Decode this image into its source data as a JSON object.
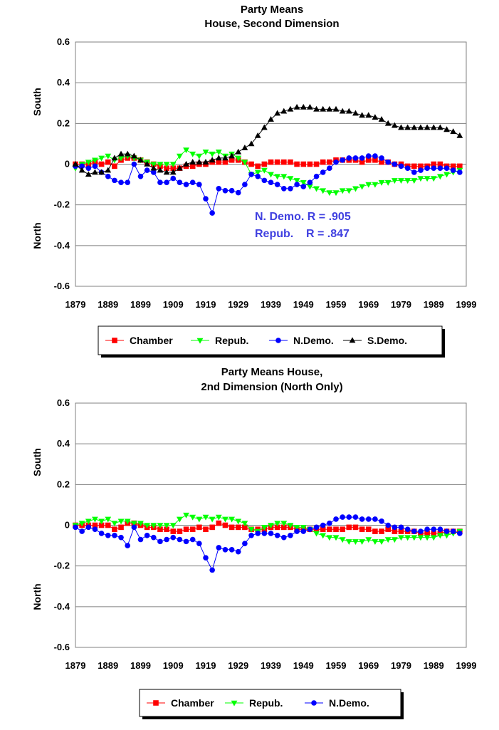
{
  "chart_data": [
    {
      "type": "line",
      "title": "Party Means",
      "subtitle": "House, Second Dimension",
      "ylabel_top": "South",
      "ylabel_bottom": "North",
      "xlim": [
        1879,
        1999
      ],
      "ylim": [
        -0.6,
        0.6
      ],
      "x_ticks": [
        1879,
        1889,
        1899,
        1909,
        1919,
        1929,
        1939,
        1949,
        1959,
        1969,
        1979,
        1989,
        1999
      ],
      "y_ticks": [
        -0.6,
        -0.4,
        -0.2,
        0,
        0.2,
        0.4,
        0.6
      ],
      "y_tick_labels": [
        "-0.6",
        "-0.4",
        "-0.2",
        "0",
        "0.2",
        "0.4",
        "0.6"
      ],
      "grid": "horizontal",
      "legend_position": "bottom",
      "annotations": [
        "N. Demo. R = .905",
        "Repub.    R = .847"
      ],
      "annotation_color": "#4040e0",
      "series": [
        {
          "name": "Chamber",
          "color": "#ff0000",
          "marker": "square",
          "x": [
            1879,
            1881,
            1883,
            1885,
            1887,
            1889,
            1891,
            1893,
            1895,
            1897,
            1899,
            1901,
            1903,
            1905,
            1907,
            1909,
            1911,
            1913,
            1915,
            1917,
            1919,
            1921,
            1923,
            1925,
            1927,
            1929,
            1931,
            1933,
            1935,
            1937,
            1939,
            1941,
            1943,
            1945,
            1947,
            1949,
            1951,
            1953,
            1955,
            1957,
            1959,
            1961,
            1963,
            1965,
            1967,
            1969,
            1971,
            1973,
            1975,
            1977,
            1979,
            1981,
            1983,
            1985,
            1987,
            1989,
            1991,
            1993,
            1995,
            1997
          ],
          "y": [
            0,
            0,
            0,
            0.01,
            0,
            0.01,
            -0.01,
            0.02,
            0.03,
            0.03,
            0.02,
            0.01,
            0,
            -0.01,
            -0.02,
            -0.02,
            -0.02,
            -0.01,
            -0.01,
            0,
            0,
            0.01,
            0.01,
            0.01,
            0.02,
            0.02,
            0.01,
            0,
            -0.01,
            0,
            0.01,
            0.01,
            0.01,
            0.01,
            0,
            0,
            0,
            0,
            0.01,
            0.01,
            0.02,
            0.02,
            0.02,
            0.02,
            0.01,
            0.02,
            0.02,
            0.01,
            0.01,
            0,
            0,
            -0.01,
            -0.01,
            -0.01,
            -0.01,
            0,
            0,
            -0.01,
            -0.01,
            -0.01
          ]
        },
        {
          "name": "Repub.",
          "color": "#00ff00",
          "marker": "triangle-down",
          "x": [
            1879,
            1881,
            1883,
            1885,
            1887,
            1889,
            1891,
            1893,
            1895,
            1897,
            1899,
            1901,
            1903,
            1905,
            1907,
            1909,
            1911,
            1913,
            1915,
            1917,
            1919,
            1921,
            1923,
            1925,
            1927,
            1929,
            1931,
            1933,
            1935,
            1937,
            1939,
            1941,
            1943,
            1945,
            1947,
            1949,
            1951,
            1953,
            1955,
            1957,
            1959,
            1961,
            1963,
            1965,
            1967,
            1969,
            1971,
            1973,
            1975,
            1977,
            1979,
            1981,
            1983,
            1985,
            1987,
            1989,
            1991,
            1993,
            1995,
            1997
          ],
          "y": [
            -0.02,
            0,
            0.01,
            0.02,
            0.03,
            0.04,
            0.02,
            0.03,
            0.04,
            0.03,
            0.02,
            0.01,
            0,
            0,
            0,
            0,
            0.04,
            0.07,
            0.05,
            0.04,
            0.06,
            0.05,
            0.06,
            0.04,
            0.05,
            0.03,
            0.01,
            -0.05,
            -0.04,
            -0.03,
            -0.05,
            -0.06,
            -0.06,
            -0.07,
            -0.08,
            -0.09,
            -0.11,
            -0.12,
            -0.13,
            -0.14,
            -0.14,
            -0.13,
            -0.13,
            -0.12,
            -0.11,
            -0.1,
            -0.1,
            -0.09,
            -0.09,
            -0.08,
            -0.08,
            -0.08,
            -0.08,
            -0.07,
            -0.07,
            -0.07,
            -0.06,
            -0.05,
            -0.04,
            -0.03
          ]
        },
        {
          "name": "N.Demo.",
          "color": "#0000ff",
          "marker": "circle",
          "x": [
            1879,
            1881,
            1883,
            1885,
            1887,
            1889,
            1891,
            1893,
            1895,
            1897,
            1899,
            1901,
            1903,
            1905,
            1907,
            1909,
            1911,
            1913,
            1915,
            1917,
            1919,
            1921,
            1923,
            1925,
            1927,
            1929,
            1931,
            1933,
            1935,
            1937,
            1939,
            1941,
            1943,
            1945,
            1947,
            1949,
            1951,
            1953,
            1955,
            1957,
            1959,
            1961,
            1963,
            1965,
            1967,
            1969,
            1971,
            1973,
            1975,
            1977,
            1979,
            1981,
            1983,
            1985,
            1987,
            1989,
            1991,
            1993,
            1995,
            1997
          ],
          "y": [
            -0.01,
            -0.01,
            -0.02,
            -0.01,
            -0.04,
            -0.06,
            -0.08,
            -0.09,
            -0.09,
            0,
            -0.06,
            -0.03,
            -0.04,
            -0.09,
            -0.09,
            -0.07,
            -0.09,
            -0.1,
            -0.09,
            -0.1,
            -0.17,
            -0.24,
            -0.12,
            -0.13,
            -0.13,
            -0.14,
            -0.1,
            -0.05,
            -0.06,
            -0.08,
            -0.09,
            -0.1,
            -0.12,
            -0.12,
            -0.1,
            -0.11,
            -0.09,
            -0.06,
            -0.04,
            -0.02,
            0.01,
            0.02,
            0.03,
            0.03,
            0.03,
            0.04,
            0.04,
            0.03,
            0.01,
            0,
            -0.01,
            -0.02,
            -0.04,
            -0.03,
            -0.02,
            -0.02,
            -0.02,
            -0.02,
            -0.03,
            -0.04
          ]
        },
        {
          "name": "S.Demo.",
          "color": "#000000",
          "marker": "triangle-up",
          "x": [
            1879,
            1881,
            1883,
            1885,
            1887,
            1889,
            1891,
            1893,
            1895,
            1897,
            1899,
            1901,
            1903,
            1905,
            1907,
            1909,
            1911,
            1913,
            1915,
            1917,
            1919,
            1921,
            1923,
            1925,
            1927,
            1929,
            1931,
            1933,
            1935,
            1937,
            1939,
            1941,
            1943,
            1945,
            1947,
            1949,
            1951,
            1953,
            1955,
            1957,
            1959,
            1961,
            1963,
            1965,
            1967,
            1969,
            1971,
            1973,
            1975,
            1977,
            1979,
            1981,
            1983,
            1985,
            1987,
            1989,
            1991,
            1993,
            1995,
            1997
          ],
          "y": [
            0,
            -0.03,
            -0.05,
            -0.04,
            -0.04,
            -0.03,
            0.03,
            0.05,
            0.05,
            0.04,
            0.02,
            0,
            -0.02,
            -0.03,
            -0.04,
            -0.04,
            -0.02,
            0,
            0.01,
            0.01,
            0.01,
            0.02,
            0.03,
            0.03,
            0.04,
            0.06,
            0.08,
            0.1,
            0.14,
            0.18,
            0.22,
            0.25,
            0.26,
            0.27,
            0.28,
            0.28,
            0.28,
            0.27,
            0.27,
            0.27,
            0.27,
            0.26,
            0.26,
            0.25,
            0.24,
            0.24,
            0.23,
            0.22,
            0.2,
            0.19,
            0.18,
            0.18,
            0.18,
            0.18,
            0.18,
            0.18,
            0.18,
            0.17,
            0.16,
            0.14
          ]
        }
      ]
    },
    {
      "type": "line",
      "title": "Party Means House,",
      "subtitle": "2nd Dimension (North Only)",
      "ylabel_top": "South",
      "ylabel_bottom": "North",
      "xlim": [
        1879,
        1999
      ],
      "ylim": [
        -0.6,
        0.6
      ],
      "x_ticks": [
        1879,
        1889,
        1899,
        1909,
        1919,
        1929,
        1939,
        1949,
        1959,
        1969,
        1979,
        1989,
        1999
      ],
      "y_ticks": [
        -0.6,
        -0.4,
        -0.2,
        0,
        0.2,
        0.4,
        0.6
      ],
      "y_tick_labels": [
        "-0.6",
        "-0.4",
        "-0.2",
        "0",
        "0.2",
        "0.4",
        "0.6"
      ],
      "grid": "horizontal",
      "legend_position": "bottom",
      "annotations": [],
      "series": [
        {
          "name": "Chamber",
          "color": "#ff0000",
          "marker": "square",
          "x": [
            1879,
            1881,
            1883,
            1885,
            1887,
            1889,
            1891,
            1893,
            1895,
            1897,
            1899,
            1901,
            1903,
            1905,
            1907,
            1909,
            1911,
            1913,
            1915,
            1917,
            1919,
            1921,
            1923,
            1925,
            1927,
            1929,
            1931,
            1933,
            1935,
            1937,
            1939,
            1941,
            1943,
            1945,
            1947,
            1949,
            1951,
            1953,
            1955,
            1957,
            1959,
            1961,
            1963,
            1965,
            1967,
            1969,
            1971,
            1973,
            1975,
            1977,
            1979,
            1981,
            1983,
            1985,
            1987,
            1989,
            1991,
            1993,
            1995,
            1997
          ],
          "y": [
            0,
            0,
            0,
            0,
            0,
            0,
            -0.02,
            -0.01,
            0.01,
            0.01,
            0,
            -0.01,
            -0.01,
            -0.02,
            -0.02,
            -0.03,
            -0.03,
            -0.02,
            -0.02,
            -0.01,
            -0.02,
            -0.01,
            0.01,
            0,
            -0.01,
            -0.01,
            -0.01,
            -0.02,
            -0.02,
            -0.02,
            -0.01,
            -0.01,
            -0.01,
            -0.01,
            -0.02,
            -0.02,
            -0.02,
            -0.02,
            -0.02,
            -0.02,
            -0.02,
            -0.02,
            -0.01,
            -0.01,
            -0.02,
            -0.02,
            -0.03,
            -0.03,
            -0.02,
            -0.03,
            -0.03,
            -0.03,
            -0.03,
            -0.04,
            -0.04,
            -0.04,
            -0.04,
            -0.03,
            -0.03,
            -0.03
          ]
        },
        {
          "name": "Repub.",
          "color": "#00ff00",
          "marker": "triangle-down",
          "x": [
            1879,
            1881,
            1883,
            1885,
            1887,
            1889,
            1891,
            1893,
            1895,
            1897,
            1899,
            1901,
            1903,
            1905,
            1907,
            1909,
            1911,
            1913,
            1915,
            1917,
            1919,
            1921,
            1923,
            1925,
            1927,
            1929,
            1931,
            1933,
            1935,
            1937,
            1939,
            1941,
            1943,
            1945,
            1947,
            1949,
            1951,
            1953,
            1955,
            1957,
            1959,
            1961,
            1963,
            1965,
            1967,
            1969,
            1971,
            1973,
            1975,
            1977,
            1979,
            1981,
            1983,
            1985,
            1987,
            1989,
            1991,
            1993,
            1995,
            1997
          ],
          "y": [
            0,
            0.01,
            0.02,
            0.03,
            0.02,
            0.03,
            0.01,
            0.02,
            0.02,
            0.01,
            0.01,
            0,
            0,
            0,
            0,
            0,
            0.03,
            0.05,
            0.04,
            0.03,
            0.04,
            0.03,
            0.04,
            0.03,
            0.03,
            0.02,
            0.01,
            -0.02,
            -0.03,
            -0.01,
            0,
            0.01,
            0.01,
            0,
            -0.01,
            -0.01,
            -0.02,
            -0.04,
            -0.05,
            -0.06,
            -0.06,
            -0.07,
            -0.08,
            -0.08,
            -0.08,
            -0.07,
            -0.08,
            -0.08,
            -0.07,
            -0.07,
            -0.06,
            -0.06,
            -0.06,
            -0.06,
            -0.06,
            -0.06,
            -0.05,
            -0.05,
            -0.04,
            -0.03
          ]
        },
        {
          "name": "N.Demo.",
          "color": "#0000ff",
          "marker": "circle",
          "x": [
            1879,
            1881,
            1883,
            1885,
            1887,
            1889,
            1891,
            1893,
            1895,
            1897,
            1899,
            1901,
            1903,
            1905,
            1907,
            1909,
            1911,
            1913,
            1915,
            1917,
            1919,
            1921,
            1923,
            1925,
            1927,
            1929,
            1931,
            1933,
            1935,
            1937,
            1939,
            1941,
            1943,
            1945,
            1947,
            1949,
            1951,
            1953,
            1955,
            1957,
            1959,
            1961,
            1963,
            1965,
            1967,
            1969,
            1971,
            1973,
            1975,
            1977,
            1979,
            1981,
            1983,
            1985,
            1987,
            1989,
            1991,
            1993,
            1995,
            1997
          ],
          "y": [
            -0.01,
            -0.03,
            -0.01,
            -0.02,
            -0.04,
            -0.05,
            -0.05,
            -0.06,
            -0.1,
            -0.01,
            -0.07,
            -0.05,
            -0.06,
            -0.08,
            -0.07,
            -0.06,
            -0.07,
            -0.08,
            -0.07,
            -0.09,
            -0.16,
            -0.22,
            -0.11,
            -0.12,
            -0.12,
            -0.13,
            -0.09,
            -0.05,
            -0.04,
            -0.04,
            -0.04,
            -0.05,
            -0.06,
            -0.05,
            -0.03,
            -0.03,
            -0.02,
            -0.01,
            0,
            0.01,
            0.03,
            0.04,
            0.04,
            0.04,
            0.03,
            0.03,
            0.03,
            0.02,
            0,
            -0.01,
            -0.01,
            -0.02,
            -0.03,
            -0.03,
            -0.02,
            -0.02,
            -0.02,
            -0.03,
            -0.03,
            -0.04
          ]
        }
      ]
    }
  ]
}
